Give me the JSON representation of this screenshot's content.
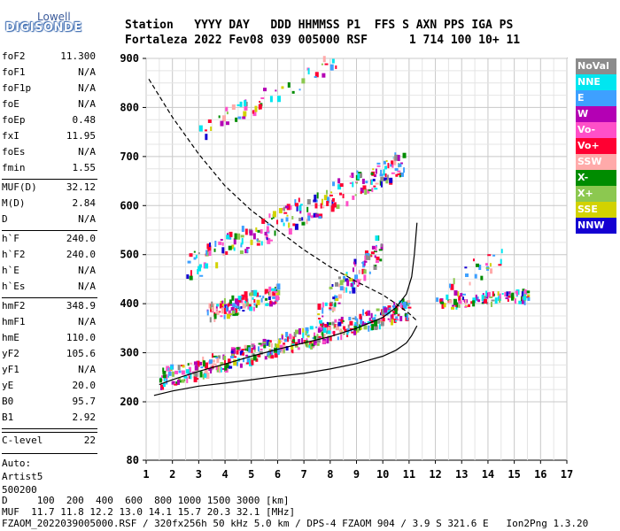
{
  "logo": {
    "line1": "Lowell",
    "line2": "DIGISONDE"
  },
  "header": {
    "line1": "Station   YYYY DAY   DDD HHMMSS P1  FFS S AXN PPS IGA PS",
    "line2": "Fortaleza 2022 Fev08 039 005000 RSF      1 714 100 10+ 11"
  },
  "params": [
    {
      "label": "foF2",
      "value": "11.300"
    },
    {
      "label": "foF1",
      "value": "N/A"
    },
    {
      "label": "foF1p",
      "value": "N/A"
    },
    {
      "label": "foE",
      "value": "N/A"
    },
    {
      "label": "foEp",
      "value": "0.48"
    },
    {
      "label": "fxI",
      "value": "11.95"
    },
    {
      "label": "foEs",
      "value": "N/A"
    },
    {
      "label": "fmin",
      "value": "1.55"
    },
    {
      "label": "MUF(D)",
      "value": "32.12"
    },
    {
      "label": "M(D)",
      "value": "2.84"
    },
    {
      "label": "D",
      "value": "N/A"
    },
    {
      "label": "h`F",
      "value": "240.0"
    },
    {
      "label": "h`F2",
      "value": "240.0"
    },
    {
      "label": "h`E",
      "value": "N/A"
    },
    {
      "label": "h`Es",
      "value": "N/A"
    },
    {
      "label": "hmF2",
      "value": "348.9"
    },
    {
      "label": "hmF1",
      "value": "N/A"
    },
    {
      "label": "hmE",
      "value": "110.0"
    },
    {
      "label": "yF2",
      "value": "105.6"
    },
    {
      "label": "yF1",
      "value": "N/A"
    },
    {
      "label": "yE",
      "value": "20.0"
    },
    {
      "label": "B0",
      "value": "95.7"
    },
    {
      "label": "B1",
      "value": "2.92"
    },
    {
      "label": "C-level",
      "value": "22"
    }
  ],
  "autoscale": {
    "line1": "Auto:",
    "line2": "Artist5",
    "line3": "500200"
  },
  "legend": [
    {
      "label": "NoVal",
      "color": "#8c8c8c"
    },
    {
      "label": "NNE",
      "color": "#00e6f0"
    },
    {
      "label": "E",
      "color": "#3ea0ff"
    },
    {
      "label": "W",
      "color": "#b400b4"
    },
    {
      "label": "Vo-",
      "color": "#ff50c8"
    },
    {
      "label": "Vo+",
      "color": "#ff0032"
    },
    {
      "label": "SSW",
      "color": "#ffaaaa"
    },
    {
      "label": "X-",
      "color": "#008c00"
    },
    {
      "label": "X+",
      "color": "#8cc850"
    },
    {
      "label": "SSE",
      "color": "#d2d200"
    },
    {
      "label": "NNW",
      "color": "#1400d2"
    }
  ],
  "bottom": {
    "line1": "D     100  200  400  600  800 1000 1500 3000 [km]",
    "line2": "MUF  11.7 11.8 12.2 13.0 14.1 15.7 20.3 32.1 [MHz]",
    "line3": "FZAOM_2022039005000.RSF / 320fx256h 50 kHz 5.0 km / DPS-4 FZAOM 904 / 3.9 S 321.6 E   Ion2Png 1.3.20"
  },
  "chart_data": {
    "type": "scatter",
    "xlim": [
      1,
      17
    ],
    "ylim": [
      80,
      900
    ],
    "x_ticks": [
      1,
      2,
      3,
      4,
      5,
      6,
      7,
      8,
      9,
      10,
      11,
      12,
      13,
      14,
      15,
      16,
      17
    ],
    "y_ticks": [
      80,
      200,
      300,
      400,
      500,
      600,
      700,
      800,
      900
    ],
    "grid": true,
    "trace_solid_upper": {
      "x": [
        1.5,
        2,
        3,
        4,
        5,
        6,
        7,
        8,
        9,
        10,
        10.5,
        10.9,
        11.1,
        11.2,
        11.3
      ],
      "y": [
        235,
        245,
        262,
        277,
        293,
        307,
        320,
        333,
        350,
        372,
        392,
        420,
        455,
        500,
        565
      ]
    },
    "trace_solid_lower": {
      "x": [
        1.3,
        2,
        3,
        4,
        5,
        6,
        7,
        8,
        9,
        10,
        10.5,
        10.9,
        11.1,
        11.2,
        11.3
      ],
      "y": [
        213,
        222,
        232,
        238,
        245,
        252,
        258,
        267,
        278,
        293,
        305,
        320,
        335,
        345,
        355
      ]
    },
    "trace_dashed_muf": {
      "x": [
        1.1,
        2,
        3,
        4,
        5,
        6,
        7,
        8,
        9,
        10,
        10.5,
        11,
        11.3
      ],
      "y": [
        858,
        780,
        705,
        640,
        590,
        550,
        510,
        475,
        445,
        418,
        400,
        380,
        365
      ]
    },
    "echo_clusters": [
      {
        "x": [
          1.5,
          11.0
        ],
        "y_start": 245,
        "y_end": 390,
        "spread": 20,
        "density": 420
      },
      {
        "x": [
          2.5,
          10.8
        ],
        "y_start": 470,
        "y_end": 690,
        "spread": 28,
        "density": 220
      },
      {
        "x": [
          3.0,
          8.2
        ],
        "y_start": 750,
        "y_end": 895,
        "spread": 20,
        "density": 50
      },
      {
        "x": [
          3.3,
          6.0
        ],
        "y_start": 380,
        "y_end": 420,
        "spread": 18,
        "density": 120
      },
      {
        "x": [
          7.5,
          10.0
        ],
        "y_start": 380,
        "y_end": 520,
        "spread": 30,
        "density": 90
      },
      {
        "x": [
          12.0,
          15.5
        ],
        "y_start": 400,
        "y_end": 415,
        "spread": 12,
        "density": 90
      },
      {
        "x": [
          12.5,
          14.5
        ],
        "y_start": 430,
        "y_end": 500,
        "spread": 30,
        "density": 25
      }
    ]
  }
}
